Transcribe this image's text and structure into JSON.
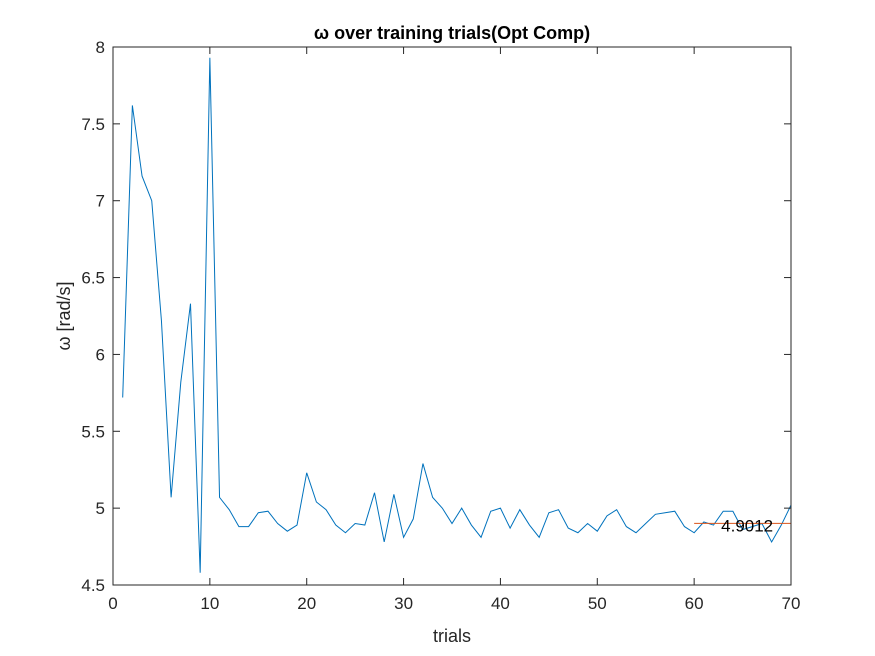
{
  "chart_data": {
    "type": "line",
    "title": "ω over training trials(Opt Comp)",
    "xlabel": "trials",
    "ylabel": "ω [rad/s]",
    "xlim": [
      0,
      70
    ],
    "ylim": [
      4.5,
      8
    ],
    "xticks": [
      0,
      10,
      20,
      30,
      40,
      50,
      60,
      70
    ],
    "yticks": [
      4.5,
      5,
      5.5,
      6,
      6.5,
      7,
      7.5,
      8
    ],
    "grid": false,
    "series_color": "#0072BD",
    "x": [
      1,
      2,
      3,
      4,
      5,
      6,
      7,
      8,
      9,
      10,
      11,
      12,
      13,
      14,
      15,
      16,
      17,
      18,
      19,
      20,
      21,
      22,
      23,
      24,
      25,
      26,
      27,
      28,
      29,
      30,
      31,
      32,
      33,
      34,
      35,
      36,
      37,
      38,
      39,
      40,
      41,
      42,
      43,
      44,
      45,
      46,
      47,
      48,
      49,
      50,
      51,
      52,
      53,
      54,
      55,
      56,
      57,
      58,
      59,
      60,
      61,
      62,
      63,
      64,
      65,
      66,
      67,
      68,
      69,
      70
    ],
    "y": [
      5.72,
      7.62,
      7.16,
      7.0,
      6.22,
      5.07,
      5.82,
      6.33,
      4.58,
      7.93,
      5.07,
      4.99,
      4.88,
      4.88,
      4.97,
      4.98,
      4.9,
      4.85,
      4.89,
      5.23,
      5.04,
      4.99,
      4.89,
      4.84,
      4.9,
      4.89,
      5.1,
      4.78,
      5.09,
      4.81,
      4.93,
      5.29,
      5.07,
      5.0,
      4.9,
      5.0,
      4.89,
      4.81,
      4.98,
      5.0,
      4.87,
      4.99,
      4.89,
      4.81,
      4.97,
      4.99,
      4.87,
      4.84,
      4.9,
      4.85,
      4.95,
      4.99,
      4.88,
      4.84,
      4.9,
      4.96,
      4.97,
      4.98,
      4.88,
      4.84,
      4.91,
      4.89,
      4.98,
      4.98,
      4.86,
      4.88,
      4.9,
      4.78,
      4.89,
      5.02
    ],
    "mean_line": {
      "x": [
        60,
        70
      ],
      "value": 4.9012,
      "label": "4.9012",
      "color": "#D95319"
    }
  }
}
